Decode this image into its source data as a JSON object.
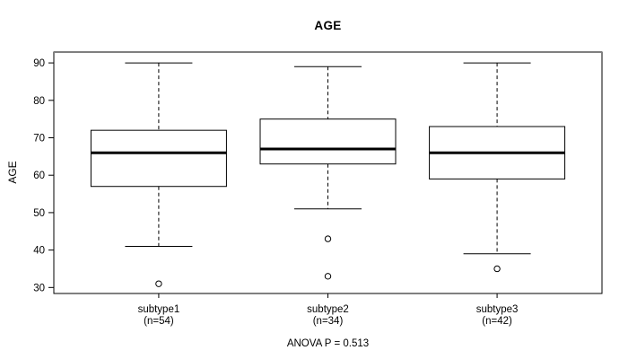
{
  "chart_data": {
    "type": "boxplot",
    "title": "AGE",
    "ylabel": "AGE",
    "xlabel": "",
    "footnote": "ANOVA P = 0.513",
    "y_ticks": [
      30,
      40,
      50,
      60,
      70,
      80,
      90
    ],
    "ylim": [
      28.4,
      92.9
    ],
    "grid": false,
    "groups": [
      {
        "label": "subtype1",
        "n_label": "(n=54)",
        "n": 54,
        "whisker_low": 41,
        "q1": 57,
        "median": 66,
        "q3": 72,
        "whisker_high": 90,
        "outliers": [
          31
        ]
      },
      {
        "label": "subtype2",
        "n_label": "(n=34)",
        "n": 34,
        "whisker_low": 51,
        "q1": 63,
        "median": 67,
        "q3": 75,
        "whisker_high": 89,
        "outliers": [
          43,
          33
        ]
      },
      {
        "label": "subtype3",
        "n_label": "(n=42)",
        "n": 42,
        "whisker_low": 39,
        "q1": 59,
        "median": 66,
        "q3": 73,
        "whisker_high": 90,
        "outliers": [
          35
        ]
      }
    ],
    "colors": {
      "line": "#000000",
      "median": "#000000",
      "background": "#ffffff",
      "frame_top": "#7f7f7f",
      "box_fill": "#ffffff"
    }
  }
}
